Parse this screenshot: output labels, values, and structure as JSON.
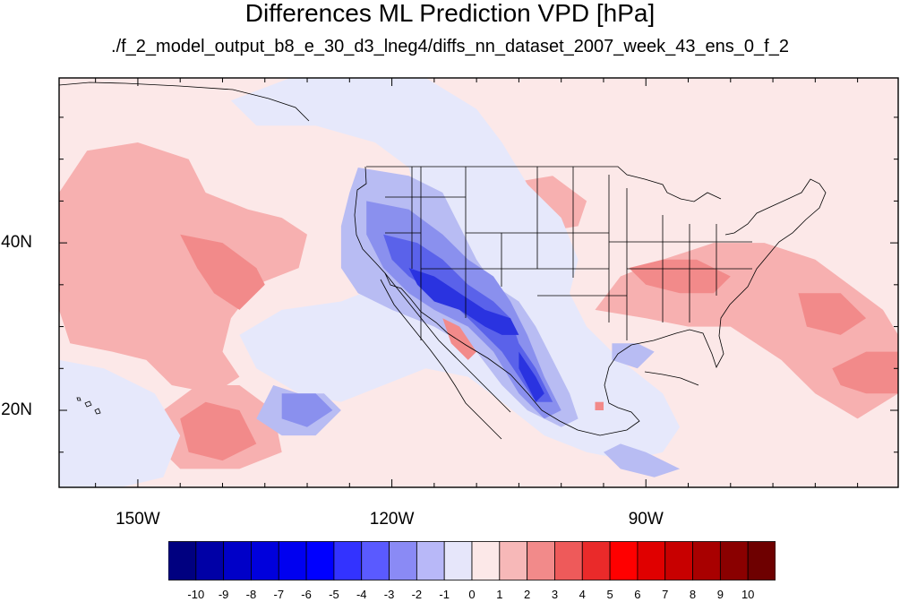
{
  "title": "Differences ML Prediction VPD [hPa]",
  "subtitle": "./f_2_model_output_b8_e_30_d3_lneg4/diffs_nn_dataset_2007_week_43_ens_0_f_2",
  "map": {
    "lon_range": [
      -159.3,
      -60.2
    ],
    "lat_range": [
      10.8,
      59.7
    ],
    "x_ticks": [
      {
        "lon": -150,
        "label": "150W"
      },
      {
        "lon": -120,
        "label": "120W"
      },
      {
        "lon": -90,
        "label": "90W"
      }
    ],
    "y_ticks": [
      {
        "lat": 40,
        "label": "40N"
      },
      {
        "lat": 20,
        "label": "20N"
      }
    ],
    "background_color": "#fce8e8",
    "regions": [
      {
        "fill": "#f7b0b0",
        "lonlat": [
          [
            -159.3,
            46
          ],
          [
            -156,
            51
          ],
          [
            -150,
            52
          ],
          [
            -144,
            50
          ],
          [
            -142,
            46
          ],
          [
            -137,
            44
          ],
          [
            -133,
            43
          ],
          [
            -130,
            41
          ],
          [
            -131,
            37
          ],
          [
            -136,
            35
          ],
          [
            -139,
            31
          ],
          [
            -140,
            27
          ],
          [
            -138,
            24
          ],
          [
            -141,
            22
          ],
          [
            -146,
            23
          ],
          [
            -149,
            26
          ],
          [
            -153,
            27
          ],
          [
            -158,
            28
          ],
          [
            -159.3,
            32
          ]
        ]
      },
      {
        "fill": "#f7b0b0",
        "lonlat": [
          [
            -147,
            20
          ],
          [
            -143,
            23
          ],
          [
            -138,
            23
          ],
          [
            -134,
            20
          ],
          [
            -133,
            15
          ],
          [
            -138,
            13
          ],
          [
            -145,
            13
          ],
          [
            -148,
            16
          ]
        ]
      },
      {
        "fill": "#f7b0b0",
        "lonlat": [
          [
            -96,
            32
          ],
          [
            -93,
            36
          ],
          [
            -88,
            38
          ],
          [
            -82,
            40
          ],
          [
            -76,
            40
          ],
          [
            -70,
            38
          ],
          [
            -66,
            35
          ],
          [
            -62,
            32
          ],
          [
            -60.2,
            29
          ],
          [
            -60.2,
            22
          ],
          [
            -65,
            19
          ],
          [
            -70,
            22
          ],
          [
            -74,
            26
          ],
          [
            -80,
            30
          ],
          [
            -85,
            30
          ],
          [
            -90,
            31
          ]
        ]
      },
      {
        "fill": "#f7b0b0",
        "lonlat": [
          [
            -111,
            44
          ],
          [
            -107,
            47
          ],
          [
            -101,
            48
          ],
          [
            -97,
            45
          ],
          [
            -98,
            42
          ],
          [
            -104,
            41
          ]
        ]
      },
      {
        "fill": "#f28a8a",
        "lonlat": [
          [
            -145,
            41
          ],
          [
            -140,
            40
          ],
          [
            -136,
            37
          ],
          [
            -135,
            35
          ],
          [
            -138,
            32
          ],
          [
            -141,
            34
          ],
          [
            -143,
            37
          ]
        ]
      },
      {
        "fill": "#f28a8a",
        "lonlat": [
          [
            -145,
            19
          ],
          [
            -142,
            21
          ],
          [
            -138,
            20
          ],
          [
            -136,
            16
          ],
          [
            -140,
            14
          ],
          [
            -144,
            15
          ]
        ]
      },
      {
        "fill": "#f28a8a",
        "lonlat": [
          [
            -92,
            37
          ],
          [
            -88,
            38
          ],
          [
            -84,
            38
          ],
          [
            -80,
            36
          ],
          [
            -82,
            34
          ],
          [
            -86,
            34
          ],
          [
            -90,
            35
          ]
        ]
      },
      {
        "fill": "#f28a8a",
        "lonlat": [
          [
            -72,
            34
          ],
          [
            -67,
            34
          ],
          [
            -64,
            31
          ],
          [
            -67,
            29
          ],
          [
            -71,
            30
          ]
        ]
      },
      {
        "fill": "#f28a8a",
        "lonlat": [
          [
            -68,
            25
          ],
          [
            -64,
            27
          ],
          [
            -60.2,
            27
          ],
          [
            -60.2,
            22
          ],
          [
            -64,
            22
          ],
          [
            -67,
            23
          ]
        ]
      },
      {
        "fill": "#e6e8fb",
        "lonlat": [
          [
            -159.3,
            26
          ],
          [
            -154,
            25
          ],
          [
            -148,
            22
          ],
          [
            -145,
            17
          ],
          [
            -147,
            12
          ],
          [
            -152,
            10.8
          ],
          [
            -159.3,
            10.8
          ]
        ]
      },
      {
        "fill": "#e6e8fb",
        "lonlat": [
          [
            -139,
            57
          ],
          [
            -132,
            59.7
          ],
          [
            -116,
            59.7
          ],
          [
            -110,
            56
          ],
          [
            -107,
            52
          ],
          [
            -104,
            47
          ],
          [
            -100,
            43
          ],
          [
            -98,
            38
          ],
          [
            -99,
            34
          ],
          [
            -97,
            30
          ],
          [
            -93,
            26
          ],
          [
            -88,
            22
          ],
          [
            -86,
            18
          ],
          [
            -88,
            15
          ],
          [
            -92,
            14
          ],
          [
            -97,
            15
          ],
          [
            -102,
            17
          ],
          [
            -107,
            21
          ],
          [
            -111,
            24
          ],
          [
            -116,
            25
          ],
          [
            -121,
            23
          ],
          [
            -126,
            21
          ],
          [
            -131,
            22
          ],
          [
            -136,
            25
          ],
          [
            -138,
            29
          ],
          [
            -133,
            32
          ],
          [
            -126,
            33
          ],
          [
            -121,
            35
          ],
          [
            -118,
            40
          ],
          [
            -117,
            45
          ],
          [
            -118,
            49
          ],
          [
            -122,
            52
          ],
          [
            -129,
            54
          ],
          [
            -136,
            54
          ]
        ]
      },
      {
        "fill": "#b8bcf3",
        "lonlat": [
          [
            -124,
            49
          ],
          [
            -118,
            48
          ],
          [
            -114,
            46
          ],
          [
            -112,
            42
          ],
          [
            -110,
            38
          ],
          [
            -108,
            35
          ],
          [
            -105,
            33
          ],
          [
            -103,
            30
          ],
          [
            -101,
            26
          ],
          [
            -99,
            22
          ],
          [
            -98,
            19
          ],
          [
            -100,
            18
          ],
          [
            -104,
            20
          ],
          [
            -107,
            23
          ],
          [
            -110,
            27
          ],
          [
            -115,
            30
          ],
          [
            -120,
            32
          ],
          [
            -124,
            34
          ],
          [
            -126,
            37
          ],
          [
            -126,
            42
          ],
          [
            -125,
            46
          ]
        ]
      },
      {
        "fill": "#b8bcf3",
        "lonlat": [
          [
            -134,
            23
          ],
          [
            -131,
            22
          ],
          [
            -128,
            22
          ],
          [
            -126,
            20
          ],
          [
            -129,
            17
          ],
          [
            -133,
            17
          ],
          [
            -136,
            19
          ]
        ]
      },
      {
        "fill": "#b8bcf3",
        "lonlat": [
          [
            -94,
            28
          ],
          [
            -91,
            28
          ],
          [
            -89,
            27
          ],
          [
            -91,
            25
          ],
          [
            -94,
            26
          ]
        ]
      },
      {
        "fill": "#b8bcf3",
        "lonlat": [
          [
            -93,
            16
          ],
          [
            -90,
            15
          ],
          [
            -86,
            13
          ],
          [
            -89,
            12
          ],
          [
            -93,
            13
          ],
          [
            -95,
            15
          ]
        ]
      },
      {
        "fill": "#8a90ee",
        "lonlat": [
          [
            -123,
            45
          ],
          [
            -118,
            44
          ],
          [
            -114,
            41
          ],
          [
            -111,
            38
          ],
          [
            -108,
            36
          ],
          [
            -106,
            33
          ],
          [
            -104,
            29
          ],
          [
            -102,
            24
          ],
          [
            -100,
            20
          ],
          [
            -102,
            19
          ],
          [
            -105,
            22
          ],
          [
            -108,
            27
          ],
          [
            -111,
            30
          ],
          [
            -115,
            32
          ],
          [
            -118,
            34
          ],
          [
            -121,
            37
          ],
          [
            -123,
            41
          ]
        ]
      },
      {
        "fill": "#8a90ee",
        "lonlat": [
          [
            -133,
            22
          ],
          [
            -129,
            22
          ],
          [
            -127,
            20
          ],
          [
            -130,
            18
          ],
          [
            -133,
            19
          ]
        ]
      },
      {
        "fill": "#5a62ea",
        "lonlat": [
          [
            -121,
            41
          ],
          [
            -117,
            40
          ],
          [
            -114,
            38
          ],
          [
            -111,
            35
          ],
          [
            -108,
            33
          ],
          [
            -106,
            31
          ],
          [
            -105,
            28
          ],
          [
            -103,
            25
          ],
          [
            -101,
            21
          ],
          [
            -103,
            21
          ],
          [
            -105,
            24
          ],
          [
            -107,
            27
          ],
          [
            -109,
            29
          ],
          [
            -112,
            32
          ],
          [
            -115,
            34
          ],
          [
            -118,
            36
          ],
          [
            -120,
            38
          ]
        ]
      },
      {
        "fill": "#2a33e0",
        "lonlat": [
          [
            -118,
            37
          ],
          [
            -115,
            36
          ],
          [
            -112,
            34
          ],
          [
            -109,
            32
          ],
          [
            -106,
            31
          ],
          [
            -105,
            29
          ],
          [
            -107,
            29
          ],
          [
            -109,
            30
          ],
          [
            -112,
            32
          ],
          [
            -115,
            33
          ],
          [
            -117,
            35
          ]
        ]
      },
      {
        "fill": "#2a33e0",
        "lonlat": [
          [
            -105,
            27
          ],
          [
            -103,
            24
          ],
          [
            -102,
            22
          ],
          [
            -103,
            21
          ],
          [
            -104,
            23
          ],
          [
            -105,
            25
          ]
        ]
      },
      {
        "fill": "#f28a8a",
        "lonlat": [
          [
            -114,
            31
          ],
          [
            -112,
            30
          ],
          [
            -110,
            27
          ],
          [
            -111,
            26
          ],
          [
            -113,
            28
          ]
        ]
      },
      {
        "fill": "#f28a8a",
        "lonlat": [
          [
            -96,
            21
          ],
          [
            -95,
            21
          ],
          [
            -95,
            20
          ],
          [
            -96,
            20
          ]
        ]
      }
    ]
  },
  "colorbar": {
    "labels": [
      "-10",
      "-9",
      "-8",
      "-7",
      "-6",
      "-5",
      "-4",
      "-3",
      "-2",
      "-1",
      "0",
      "1",
      "2",
      "3",
      "4",
      "5",
      "6",
      "7",
      "8",
      "9",
      "10"
    ],
    "colors": [
      "#000080",
      "#0000a6",
      "#0000c8",
      "#0000dc",
      "#0000f0",
      "#0000ff",
      "#3333ff",
      "#5a5aff",
      "#8a8af5",
      "#b8b8f8",
      "#e6e6fa",
      "#fce8e8",
      "#f7b8b8",
      "#f28a8a",
      "#ee5a5a",
      "#ea2a2a",
      "#ff0000",
      "#e00000",
      "#c80000",
      "#a80000",
      "#8a0000",
      "#6e0000"
    ]
  }
}
